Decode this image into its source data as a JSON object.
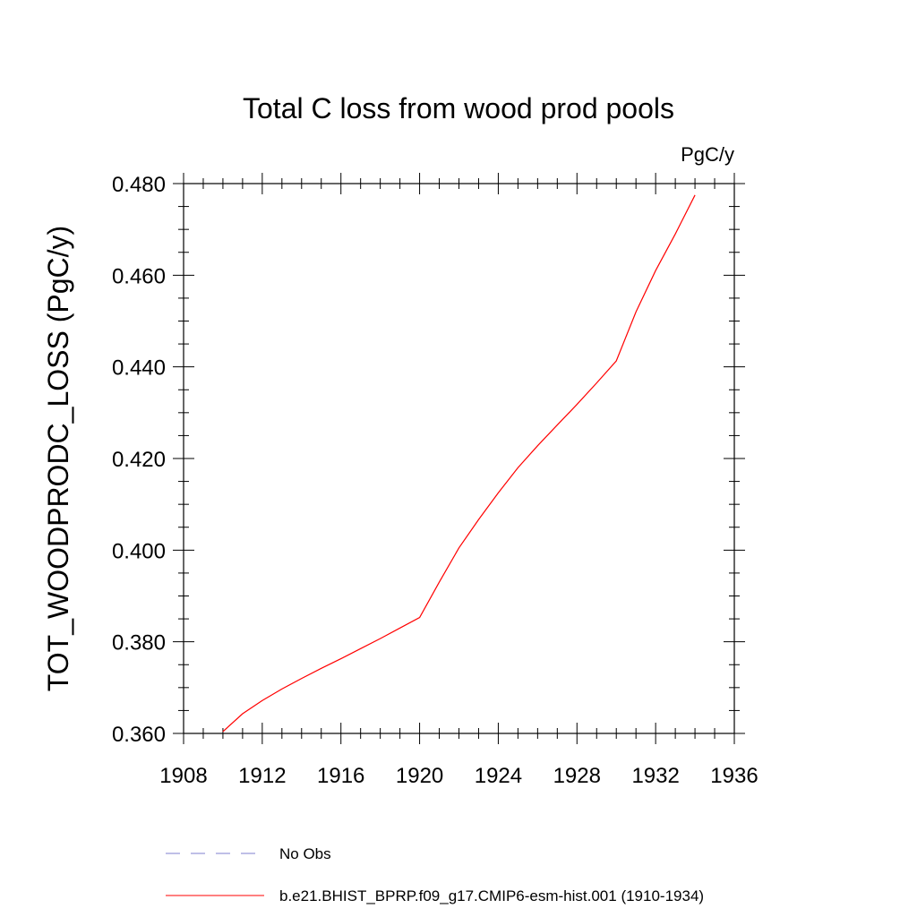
{
  "chart_data": {
    "type": "line",
    "title": "Total C loss from wood prod pools",
    "units_label": "PgC/y",
    "xlabel": "",
    "ylabel": "TOT_WOODPRODC_LOSS  (PgC/y)",
    "xlim": [
      1908,
      1936
    ],
    "ylim": [
      0.36,
      0.48
    ],
    "x_ticks": [
      1908,
      1912,
      1916,
      1920,
      1924,
      1928,
      1932,
      1936
    ],
    "x_tick_labels": [
      "1908",
      "1912",
      "1916",
      "1920",
      "1924",
      "1928",
      "1932",
      "1936"
    ],
    "y_ticks": [
      0.36,
      0.38,
      0.4,
      0.42,
      0.44,
      0.46,
      0.48
    ],
    "y_tick_labels": [
      "0.360",
      "0.380",
      "0.400",
      "0.420",
      "0.440",
      "0.460",
      "0.480"
    ],
    "grid": false,
    "legend_position": "bottom",
    "series": [
      {
        "name": "b.e21.BHIST_BPRP.f09_g17.CMIP6-esm-hist.001 (1910-1934)",
        "color": "#ff0000",
        "style": "solid",
        "x": [
          1910,
          1911,
          1912,
          1913,
          1914,
          1915,
          1916,
          1917,
          1918,
          1919,
          1920,
          1921,
          1922,
          1923,
          1924,
          1925,
          1926,
          1927,
          1928,
          1929,
          1930,
          1931,
          1932,
          1933,
          1934
        ],
        "y": [
          0.3604,
          0.3643,
          0.3672,
          0.3697,
          0.372,
          0.3742,
          0.3763,
          0.3785,
          0.3807,
          0.383,
          0.3853,
          0.393,
          0.4005,
          0.4067,
          0.4125,
          0.418,
          0.4228,
          0.4273,
          0.4318,
          0.4365,
          0.4413,
          0.452,
          0.461,
          0.469,
          0.4775
        ]
      },
      {
        "name": "No Obs",
        "color": "#7f7fcf",
        "style": "dashed",
        "x": [],
        "y": []
      }
    ]
  }
}
